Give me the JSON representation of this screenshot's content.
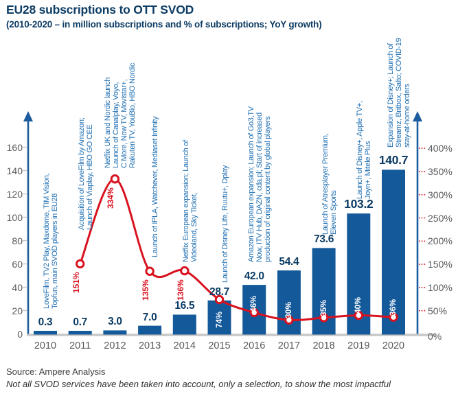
{
  "chart_data": {
    "type": "bar+line",
    "title": "EU28 subscriptions to OTT SVOD",
    "subtitle": "(2010-2020 – in million subscriptions and % of subscriptions; YoY growth)",
    "categories": [
      "2010",
      "2011",
      "2012",
      "2013",
      "2014",
      "2015",
      "2016",
      "2017",
      "2018",
      "2019",
      "2020"
    ],
    "series": [
      {
        "name": "Subscriptions (million)",
        "type": "bar",
        "values": [
          0.3,
          0.7,
          3.0,
          7.0,
          16.5,
          28.7,
          42.0,
          54.4,
          73.6,
          103.2,
          140.7
        ],
        "value_labels": [
          "0.3",
          "0.7",
          "3.0",
          "7.0",
          "16.5",
          "28.7",
          "42.0",
          "54.4",
          "73.6",
          "103.2",
          "140.7"
        ]
      },
      {
        "name": "YoY growth (%)",
        "type": "line",
        "values": [
          null,
          151,
          334,
          135,
          136,
          74,
          46,
          30,
          35,
          40,
          36
        ],
        "value_labels": [
          "",
          "151%",
          "334%",
          "135%",
          "136%",
          "74%",
          "46%",
          "30%",
          "35%",
          "40%",
          "36%"
        ],
        "label_placement": [
          "",
          "outside",
          "outside",
          "outside",
          "outside",
          "inside",
          "inside",
          "inside",
          "inside",
          "inside",
          "inside"
        ]
      }
    ],
    "left_axis": {
      "ticks": [
        0,
        20,
        40,
        60,
        80,
        100,
        120,
        140,
        160
      ],
      "max": 160
    },
    "right_axis": {
      "ticks": [
        0,
        50,
        100,
        150,
        200,
        250,
        300,
        350,
        400
      ],
      "tick_labels": [
        "0%",
        "50%",
        "100%",
        "150%",
        "200%",
        "250%",
        "300%",
        "350%",
        "400%"
      ],
      "max": 400
    },
    "legend_position": "none",
    "grid": false,
    "annotations": [
      {
        "year": "2010",
        "lines": [
          "LoveFilm, TV2 Play, Maxdome, TIM Vision,",
          "Topfun, main SVOD players in EU28"
        ]
      },
      {
        "year": "2011",
        "lines": [
          "Acquisition of LoveFilm by Amazon;",
          "Launch of Viaplay, HBO GO CEE"
        ]
      },
      {
        "year": "2012",
        "lines": [
          "Netflix UK and Nordic launch",
          "Launch of Canalplay, Voyo,",
          "C More, Now TV, Movistar+,",
          "Rakuten TV, YouBio, HBO Nordic"
        ]
      },
      {
        "year": "2013",
        "lines": [
          "Launch of IPLA, Watchever, Mediaset Infinity"
        ]
      },
      {
        "year": "2014",
        "lines": [
          "Netflix European expansion; Launch of",
          "Videoland, Sky Ticket,"
        ]
      },
      {
        "year": "2015",
        "lines": [
          "Launch of Disney Life, Ruutu+, Dplay"
        ]
      },
      {
        "year": "2016",
        "lines": [
          "Amazon European expansion; Launch of Go3,TV",
          "Now, ITV Hub, DAZN, cda.pl; Start of increased",
          "production of original content by global players"
        ]
      },
      {
        "year": "2018",
        "lines": [
          "Launch of Atresplayer Premium,",
          "Eleven Sports"
        ]
      },
      {
        "year": "2019",
        "lines": [
          "Launch of Disney+, Apple TV+,",
          "Joyn+, Mitele Plus"
        ]
      },
      {
        "year": "2020",
        "lines": [
          "Expansion of Disney+; Launch of",
          "Streamz, Britbox, Salto; COVID-19",
          "stay-at-home orders"
        ]
      }
    ],
    "colors": {
      "bar": "#14599a",
      "line": "#d9121f",
      "title_text": "#0d3c64",
      "annotation_text": "#2271b3",
      "axis_arrow": "#1d5c9e",
      "axis_label": "#57595c",
      "baseline": "#c7c7c7",
      "left_tick": "#c2cbd6"
    }
  },
  "footer": {
    "source": "Source: Ampere Analysis",
    "note": "Not all SVOD services have been taken into account, only a selection, to show the most impactful"
  }
}
